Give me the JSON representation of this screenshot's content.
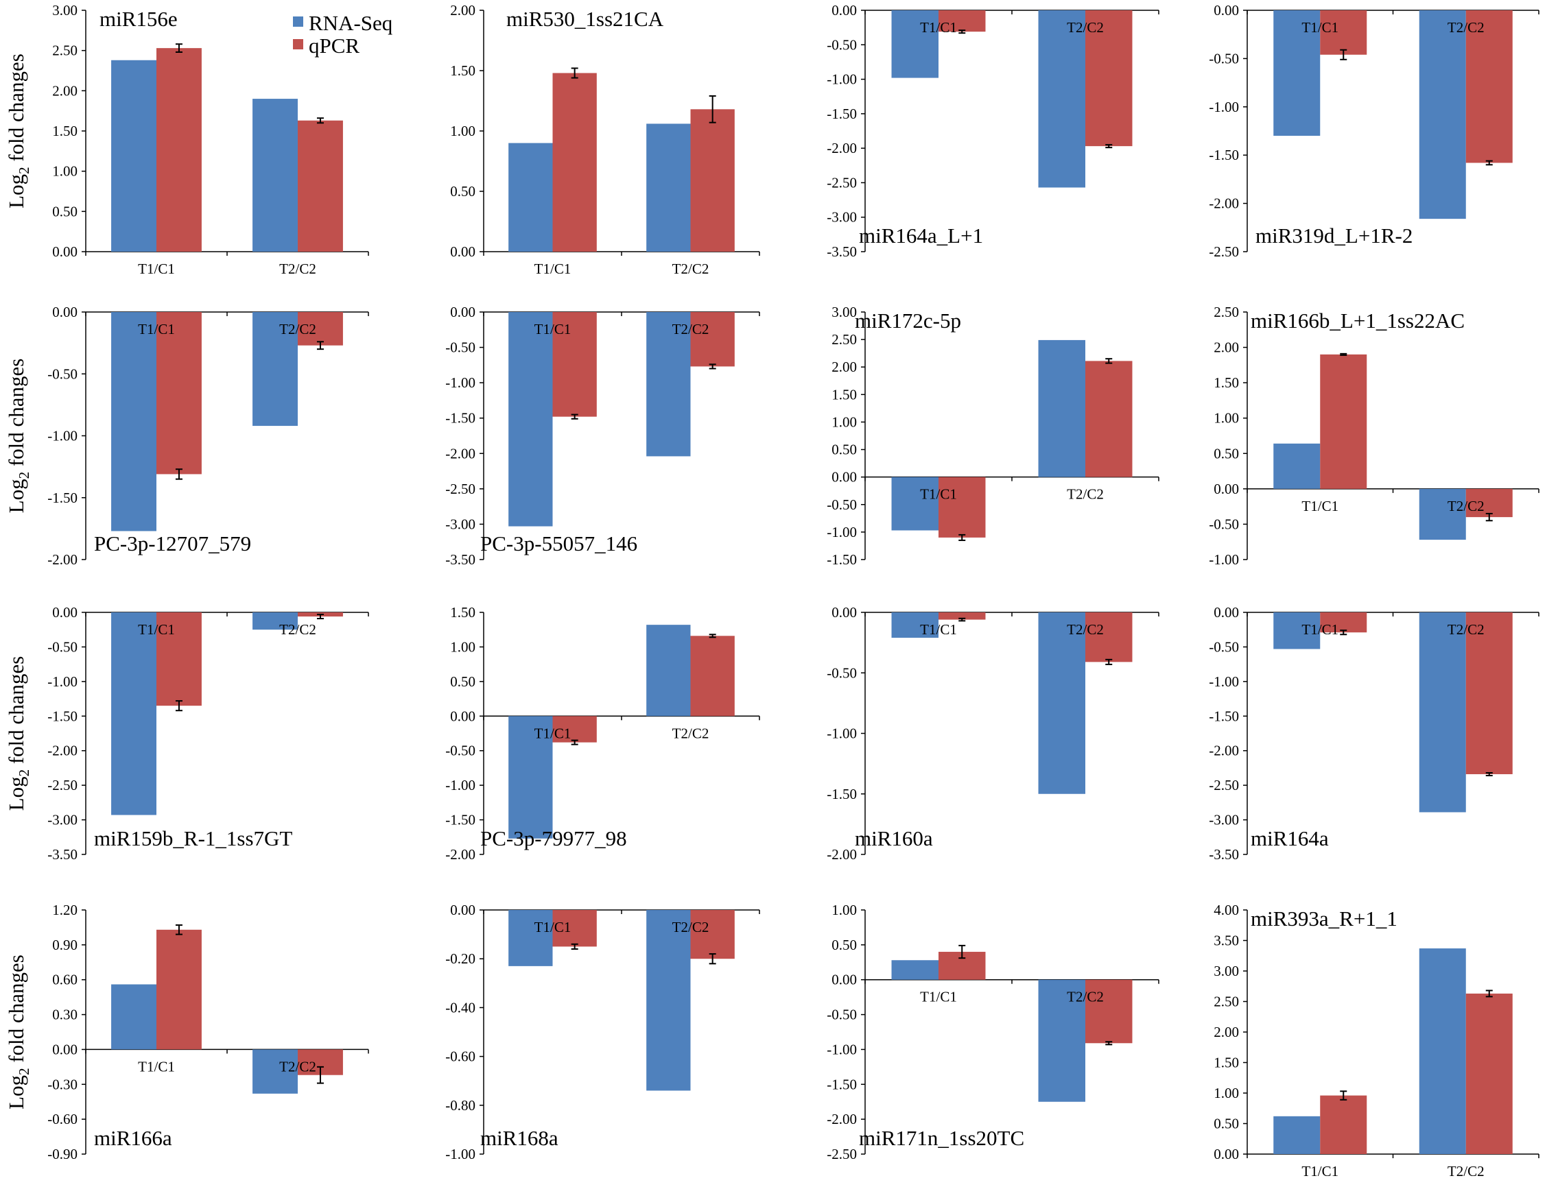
{
  "figure": {
    "ylabel_base": "Log",
    "ylabel_sub": "2",
    "ylabel_rest": " fold changes",
    "colors": {
      "rna_seq": "#4f81bd",
      "qpcr": "#c0504d",
      "error_bar": "#000000"
    }
  },
  "legend": {
    "items": [
      {
        "label": "RNA-Seq",
        "color": "#4f81bd"
      },
      {
        "label": "qPCR",
        "color": "#c0504d"
      }
    ]
  },
  "chart_data": [
    {
      "type": "bar",
      "title": "miR156e",
      "categories": [
        "T1/C1",
        "T2/C2"
      ],
      "series": [
        {
          "name": "RNA-Seq",
          "values": [
            2.38,
            1.9
          ]
        },
        {
          "name": "qPCR",
          "values": [
            2.53,
            1.63
          ],
          "errors": [
            0.05,
            0.03
          ]
        }
      ],
      "ylim": [
        0,
        3
      ],
      "yticks": [
        "0.00",
        "0.50",
        "1.00",
        "1.50",
        "2.00",
        "2.50",
        "3.00"
      ],
      "xlabel": "",
      "ylabel": "Log2 fold changes"
    },
    {
      "type": "bar",
      "title": "miR530_1ss21CA",
      "categories": [
        "T1/C1",
        "T2/C2"
      ],
      "series": [
        {
          "name": "RNA-Seq",
          "values": [
            0.9,
            1.06
          ]
        },
        {
          "name": "qPCR",
          "values": [
            1.48,
            1.18
          ],
          "errors": [
            0.04,
            0.11
          ]
        }
      ],
      "ylim": [
        0,
        2
      ],
      "yticks": [
        "0.00",
        "0.50",
        "1.00",
        "1.50",
        "2.00"
      ],
      "xlabel": "",
      "ylabel": ""
    },
    {
      "type": "bar",
      "title": "miR164a_L+1",
      "categories": [
        "T1/C1",
        "T2/C2"
      ],
      "series": [
        {
          "name": "RNA-Seq",
          "values": [
            -0.98,
            -2.57
          ]
        },
        {
          "name": "qPCR",
          "values": [
            -0.31,
            -1.97
          ],
          "errors": [
            0.02,
            0.02
          ]
        }
      ],
      "ylim": [
        -3.5,
        0
      ],
      "yticks": [
        "0.00",
        "-0.50",
        "-1.00",
        "-1.50",
        "-2.00",
        "-2.50",
        "-3.00",
        "-3.50"
      ],
      "xlabel": "",
      "ylabel": ""
    },
    {
      "type": "bar",
      "title": "miR319d_L+1R-2",
      "categories": [
        "T1/C1",
        "T2/C2"
      ],
      "series": [
        {
          "name": "RNA-Seq",
          "values": [
            -1.3,
            -2.16
          ]
        },
        {
          "name": "qPCR",
          "values": [
            -0.46,
            -1.58
          ],
          "errors": [
            0.05,
            0.02
          ]
        }
      ],
      "ylim": [
        -2.5,
        0
      ],
      "yticks": [
        "0.00",
        "-0.50",
        "-1.00",
        "-1.50",
        "-2.00",
        "-2.50"
      ],
      "xlabel": "",
      "ylabel": ""
    },
    {
      "type": "bar",
      "title": "PC-3p-12707_579",
      "categories": [
        "T1/C1",
        "T2/C2"
      ],
      "series": [
        {
          "name": "RNA-Seq",
          "values": [
            -1.77,
            -0.92
          ]
        },
        {
          "name": "qPCR",
          "values": [
            -1.31,
            -0.27
          ],
          "errors": [
            0.04,
            0.03
          ]
        }
      ],
      "ylim": [
        -2,
        0
      ],
      "yticks": [
        "0.00",
        "-0.50",
        "-1.00",
        "-1.50",
        "-2.00"
      ],
      "xlabel": "",
      "ylabel": "Log2 fold changes"
    },
    {
      "type": "bar",
      "title": "PC-3p-55057_146",
      "categories": [
        "T1/C1",
        "T2/C2"
      ],
      "series": [
        {
          "name": "RNA-Seq",
          "values": [
            -3.03,
            -2.04
          ]
        },
        {
          "name": "qPCR",
          "values": [
            -1.48,
            -0.77
          ],
          "errors": [
            0.03,
            0.03
          ]
        }
      ],
      "ylim": [
        -3.5,
        0
      ],
      "yticks": [
        "0.00",
        "-0.50",
        "-1.00",
        "-1.50",
        "-2.00",
        "-2.50",
        "-3.00",
        "-3.50"
      ],
      "xlabel": "",
      "ylabel": ""
    },
    {
      "type": "bar",
      "title": "miR172c-5p",
      "categories": [
        "T1/C1",
        "T2/C2"
      ],
      "series": [
        {
          "name": "RNA-Seq",
          "values": [
            -0.97,
            2.49
          ]
        },
        {
          "name": "qPCR",
          "values": [
            -1.1,
            2.11
          ],
          "errors": [
            0.05,
            0.04
          ]
        }
      ],
      "ylim": [
        -1.5,
        3
      ],
      "yticks": [
        "3.00",
        "2.50",
        "2.00",
        "1.50",
        "1.00",
        "0.50",
        "0.00",
        "-0.50",
        "-1.00",
        "-1.50"
      ],
      "xlabel": "",
      "ylabel": ""
    },
    {
      "type": "bar",
      "title": "miR166b_L+1_1ss22AC",
      "categories": [
        "T1/C1",
        "T2/C2"
      ],
      "series": [
        {
          "name": "RNA-Seq",
          "values": [
            0.64,
            -0.72
          ]
        },
        {
          "name": "qPCR",
          "values": [
            1.9,
            -0.4
          ],
          "errors": [
            0.01,
            0.05
          ]
        }
      ],
      "ylim": [
        -1,
        2.5
      ],
      "yticks": [
        "2.50",
        "2.00",
        "1.50",
        "1.00",
        "0.50",
        "0.00",
        "-0.50",
        "-1.00"
      ],
      "xlabel": "",
      "ylabel": ""
    },
    {
      "type": "bar",
      "title": "miR159b_R-1_1ss7GT",
      "categories": [
        "T1/C1",
        "T2/C2"
      ],
      "series": [
        {
          "name": "RNA-Seq",
          "values": [
            -2.93,
            -0.25
          ]
        },
        {
          "name": "qPCR",
          "values": [
            -1.35,
            -0.06
          ],
          "errors": [
            0.07,
            0.03
          ]
        }
      ],
      "ylim": [
        -3.5,
        0
      ],
      "yticks": [
        "0.00",
        "-0.50",
        "-1.00",
        "-1.50",
        "-2.00",
        "-2.50",
        "-3.00",
        "-3.50"
      ],
      "xlabel": "",
      "ylabel": "Log2 fold changes"
    },
    {
      "type": "bar",
      "title": "PC-3p-79977_98",
      "categories": [
        "T1/C1",
        "T2/C2"
      ],
      "series": [
        {
          "name": "RNA-Seq",
          "values": [
            -1.77,
            1.32
          ]
        },
        {
          "name": "qPCR",
          "values": [
            -0.38,
            1.16
          ],
          "errors": [
            0.03,
            0.02
          ]
        }
      ],
      "ylim": [
        -2,
        1.5
      ],
      "yticks": [
        "1.50",
        "1.00",
        "0.50",
        "0.00",
        "-0.50",
        "-1.00",
        "-1.50",
        "-2.00"
      ],
      "xlabel": "",
      "ylabel": ""
    },
    {
      "type": "bar",
      "title": "miR160a",
      "categories": [
        "T1/C1",
        "T2/C2"
      ],
      "series": [
        {
          "name": "RNA-Seq",
          "values": [
            -0.21,
            -1.5
          ]
        },
        {
          "name": "qPCR",
          "values": [
            -0.06,
            -0.41
          ],
          "errors": [
            0.01,
            0.02
          ]
        }
      ],
      "ylim": [
        -2,
        0
      ],
      "yticks": [
        "0.00",
        "-0.50",
        "-1.00",
        "-1.50",
        "-2.00"
      ],
      "xlabel": "",
      "ylabel": ""
    },
    {
      "type": "bar",
      "title": "miR164a",
      "categories": [
        "T1/C1",
        "T2/C2"
      ],
      "series": [
        {
          "name": "RNA-Seq",
          "values": [
            -0.53,
            -2.89
          ]
        },
        {
          "name": "qPCR",
          "values": [
            -0.29,
            -2.34
          ],
          "errors": [
            0.03,
            0.02
          ]
        }
      ],
      "ylim": [
        -3.5,
        0
      ],
      "yticks": [
        "0.00",
        "-0.50",
        "-1.00",
        "-1.50",
        "-2.00",
        "-2.50",
        "-3.00",
        "-3.50"
      ],
      "xlabel": "",
      "ylabel": ""
    },
    {
      "type": "bar",
      "title": "miR166a",
      "categories": [
        "T1/C1",
        "T2/C2"
      ],
      "series": [
        {
          "name": "RNA-Seq",
          "values": [
            0.56,
            -0.38
          ]
        },
        {
          "name": "qPCR",
          "values": [
            1.03,
            -0.22
          ],
          "errors": [
            0.04,
            0.07
          ]
        }
      ],
      "ylim": [
        -0.9,
        1.2
      ],
      "yticks": [
        "1.20",
        "0.90",
        "0.60",
        "0.30",
        "0.00",
        "-0.30",
        "-0.60",
        "-0.90"
      ],
      "xlabel": "",
      "ylabel": "Log2 fold changes"
    },
    {
      "type": "bar",
      "title": "miR168a",
      "categories": [
        "T1/C1",
        "T2/C2"
      ],
      "series": [
        {
          "name": "RNA-Seq",
          "values": [
            -0.23,
            -0.74
          ]
        },
        {
          "name": "qPCR",
          "values": [
            -0.15,
            -0.2
          ],
          "errors": [
            0.01,
            0.02
          ]
        }
      ],
      "ylim": [
        -1,
        0
      ],
      "yticks": [
        "0.00",
        "-0.20",
        "-0.40",
        "-0.60",
        "-0.80",
        "-1.00"
      ],
      "xlabel": "",
      "ylabel": ""
    },
    {
      "type": "bar",
      "title": "miR171n_1ss20TC",
      "categories": [
        "T1/C1",
        "T2/C2"
      ],
      "series": [
        {
          "name": "RNA-Seq",
          "values": [
            0.28,
            -1.75
          ]
        },
        {
          "name": "qPCR",
          "values": [
            0.4,
            -0.91
          ],
          "errors": [
            0.09,
            0.02
          ]
        }
      ],
      "ylim": [
        -2.5,
        1
      ],
      "yticks": [
        "1.00",
        "0.50",
        "0.00",
        "-0.50",
        "-1.00",
        "-1.50",
        "-2.00",
        "-2.50"
      ],
      "xlabel": "",
      "ylabel": ""
    },
    {
      "type": "bar",
      "title": "miR393a_R+1_1",
      "categories": [
        "T1/C1",
        "T2/C2"
      ],
      "series": [
        {
          "name": "RNA-Seq",
          "values": [
            0.62,
            3.37
          ]
        },
        {
          "name": "qPCR",
          "values": [
            0.96,
            2.63
          ],
          "errors": [
            0.07,
            0.05
          ]
        }
      ],
      "ylim": [
        0,
        4
      ],
      "yticks": [
        "4.00",
        "3.50",
        "3.00",
        "2.50",
        "2.00",
        "1.50",
        "1.00",
        "0.50",
        "0.00"
      ],
      "xlabel": "",
      "ylabel": ""
    }
  ]
}
